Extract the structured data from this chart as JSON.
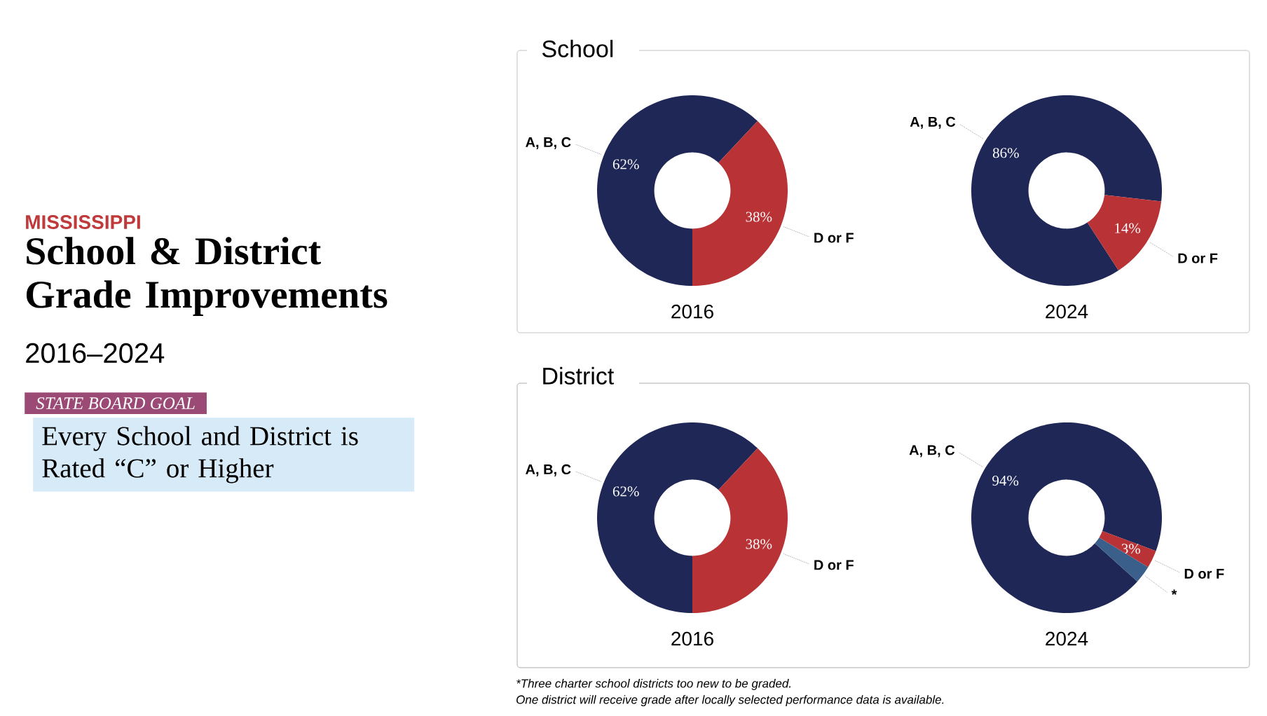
{
  "chart_data": [
    {
      "type": "other",
      "title": "School & District Grade Improvements",
      "subtitle": "2016–2024",
      "annotations": [
        "MISSISSIPPI",
        "*STATE BOARD GOAL*",
        "Every School and District is Rated “C” or Higher"
      ]
    },
    {
      "type": "donut",
      "title": "School",
      "xlabel": "2016",
      "categories": [
        "A, B, C",
        "D or F"
      ],
      "values": [
        62,
        38
      ],
      "colors": [
        "#1f2756",
        "#b83236"
      ],
      "value_labels": [
        "62%",
        "38%"
      ]
    },
    {
      "type": "donut",
      "xlabel": "2024",
      "categories": [
        "A, B, C",
        "D or F"
      ],
      "values": [
        86,
        14
      ],
      "colors": [
        "#1f2756",
        "#b83236"
      ],
      "value_labels": [
        "86%",
        "14%"
      ]
    },
    {
      "type": "donut",
      "title": "District",
      "xlabel": "2016",
      "categories": [
        "A, B, C",
        "D or F"
      ],
      "values": [
        62,
        38
      ],
      "colors": [
        "#1f2756",
        "#b83236"
      ],
      "value_labels": [
        "62%",
        "38%"
      ]
    },
    {
      "type": "donut",
      "xlabel": "2024",
      "categories": [
        "A, B, C",
        "D or F",
        "*"
      ],
      "values": [
        94,
        3,
        3
      ],
      "colors": [
        "#1f2756",
        "#b83236",
        "#3a5f8a"
      ],
      "value_labels": [
        "94%",
        "3%",
        null
      ],
      "annotations": [
        "*Three charter school districts too new to be graded.",
        "One district will receive grade after locally selected performance data is available."
      ]
    }
  ]
}
